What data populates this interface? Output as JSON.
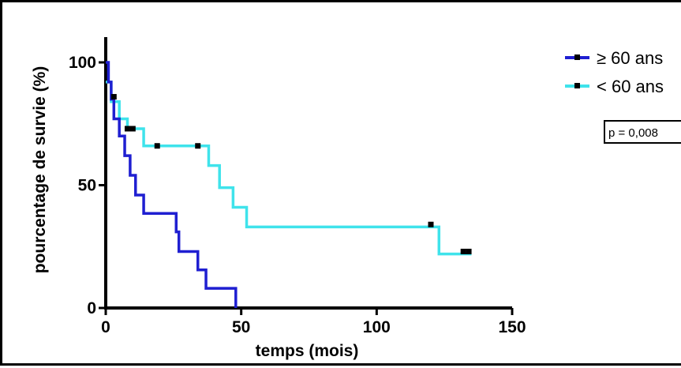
{
  "chart_data": {
    "type": "line",
    "xlabel": "temps (mois)",
    "ylabel": "pourcentage de survie (%)",
    "xlim": [
      0,
      150
    ],
    "ylim": [
      0,
      100
    ],
    "xticks": [
      0,
      50,
      100,
      150
    ],
    "yticks": [
      0,
      50,
      100
    ],
    "grid": false,
    "legend_position": "top-right",
    "annotation": "p = 0,008",
    "series": [
      {
        "name": "≥ 60 ans",
        "color": "#1f1fd1",
        "step": true,
        "x": [
          0,
          1,
          2,
          3,
          5,
          7,
          9,
          11,
          14,
          26,
          27,
          29,
          34,
          37,
          48
        ],
        "y": [
          100,
          92,
          85,
          77,
          70,
          62,
          54,
          46,
          38.5,
          31,
          23,
          23,
          15.5,
          8,
          0
        ],
        "censored": [
          {
            "x": 3,
            "y": 86
          }
        ]
      },
      {
        "name": "< 60 ans",
        "color": "#3fe3eb",
        "step": true,
        "x": [
          0,
          2,
          5,
          8,
          14,
          38,
          42,
          47,
          52,
          123,
          135
        ],
        "y": [
          92,
          84,
          77,
          73,
          66,
          58,
          49,
          41,
          33,
          22,
          22
        ],
        "censored": [
          {
            "x": 8,
            "y": 73
          },
          {
            "x": 10,
            "y": 73
          },
          {
            "x": 19,
            "y": 66
          },
          {
            "x": 34,
            "y": 66
          },
          {
            "x": 120,
            "y": 34
          },
          {
            "x": 132,
            "y": 23
          },
          {
            "x": 134,
            "y": 23
          }
        ]
      }
    ]
  }
}
